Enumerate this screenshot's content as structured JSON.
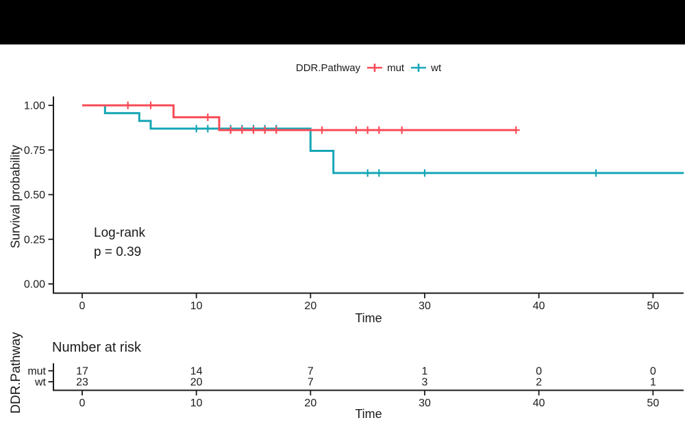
{
  "page": {
    "background": "#ffffff",
    "top_banner_color": "#000000",
    "text_color": "#1a1a1a"
  },
  "legend": {
    "title": "DDR.Pathway",
    "items": [
      {
        "label": "mut",
        "color": "#F94A56"
      },
      {
        "label": "wt",
        "color": "#16A6B6"
      }
    ]
  },
  "chart_data": {
    "type": "line",
    "subtype": "kaplan-meier-step",
    "title": "",
    "xlabel": "Time",
    "ylabel": "Survival probability",
    "xlim": [
      0,
      52.8
    ],
    "ylim": [
      0,
      1
    ],
    "grid": false,
    "legend_position": "top",
    "x_ticks": [
      0,
      10,
      20,
      30,
      40,
      50
    ],
    "y_tick_values": [
      0,
      0.25,
      0.5,
      0.75,
      1.0
    ],
    "y_tick_labels": [
      "0.00",
      "0.25",
      "0.50",
      "0.75",
      "1.00"
    ],
    "annotation": {
      "line1": "Log-rank",
      "line2": "p = 0.39"
    },
    "series": [
      {
        "name": "mut",
        "color": "#F94A56",
        "steps": [
          [
            0,
            1.0
          ],
          [
            8,
            1.0
          ],
          [
            8,
            0.9333
          ],
          [
            12,
            0.9333
          ],
          [
            12,
            0.8615
          ],
          [
            38,
            0.8615
          ]
        ],
        "censors": [
          [
            4,
            1.0
          ],
          [
            6,
            1.0
          ],
          [
            11,
            0.9333
          ],
          [
            13,
            0.8615
          ],
          [
            14,
            0.8615
          ],
          [
            15,
            0.8615
          ],
          [
            16,
            0.8615
          ],
          [
            17,
            0.8615
          ],
          [
            21,
            0.8615
          ],
          [
            24,
            0.8615
          ],
          [
            25,
            0.8615
          ],
          [
            26,
            0.8615
          ],
          [
            28,
            0.8615
          ],
          [
            38,
            0.8615
          ]
        ]
      },
      {
        "name": "wt",
        "color": "#16A6B6",
        "steps": [
          [
            0,
            1.0
          ],
          [
            2,
            1.0
          ],
          [
            2,
            0.9565
          ],
          [
            5,
            0.9565
          ],
          [
            5,
            0.913
          ],
          [
            6,
            0.913
          ],
          [
            6,
            0.8696
          ],
          [
            20,
            0.8696
          ],
          [
            20,
            0.7453
          ],
          [
            22,
            0.7453
          ],
          [
            22,
            0.6211
          ],
          [
            52.7,
            0.6211
          ]
        ],
        "censors": [
          [
            10,
            0.8696
          ],
          [
            11,
            0.8696
          ],
          [
            13,
            0.8696
          ],
          [
            14,
            0.8696
          ],
          [
            15,
            0.8696
          ],
          [
            16,
            0.8696
          ],
          [
            17,
            0.8696
          ],
          [
            25,
            0.6211
          ],
          [
            26,
            0.6211
          ],
          [
            30,
            0.6211
          ],
          [
            45,
            0.6211
          ]
        ]
      }
    ]
  },
  "risk_table": {
    "title": "Number at risk",
    "ylabel": "DDR.Pathway",
    "xlabel": "Time",
    "x_ticks": [
      0,
      10,
      20,
      30,
      40,
      50
    ],
    "rows": [
      {
        "label": "mut",
        "color": "#F94A56",
        "values": [
          17,
          14,
          7,
          1,
          0,
          0
        ]
      },
      {
        "label": "wt",
        "color": "#16A6B6",
        "values": [
          23,
          20,
          7,
          3,
          2,
          1
        ]
      }
    ]
  }
}
